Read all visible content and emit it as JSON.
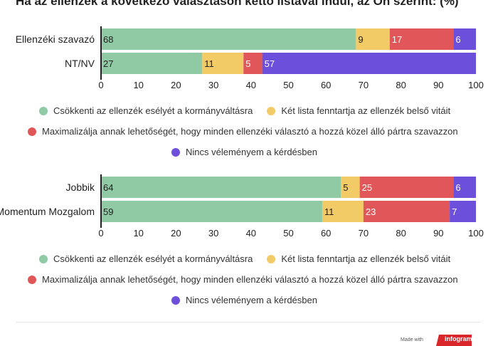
{
  "title": "Ha az ellenzék a következő választáson kettő listával indul, az Ön szerint: (%)",
  "legend": [
    {
      "label": "Csökkenti az ellenzék esélyét a kormányváltásra",
      "color": "#8fcaa4"
    },
    {
      "label": "Két lista fenntartja az ellenzék belső vitáit",
      "color": "#f2cb67"
    },
    {
      "label": "Maximalizálja annak lehetőségét, hogy minden ellenzéki választó a hozzá közel álló pártra szavazzon",
      "color": "#e15759"
    },
    {
      "label": "Nincs véleményem a kérdésben",
      "color": "#6c4fdb"
    }
  ],
  "chart_data": [
    {
      "type": "bar",
      "stacked": true,
      "orientation": "horizontal",
      "categories": [
        "Ellenzéki szavazó",
        "NT/NV"
      ],
      "series": [
        {
          "name": "Csökkenti az ellenzék esélyét a kormányváltásra",
          "values": [
            68,
            27
          ],
          "color": "#8fcaa4"
        },
        {
          "name": "Két lista fenntartja az ellenzék belső vitáit",
          "values": [
            9,
            11
          ],
          "color": "#f2cb67"
        },
        {
          "name": "Maximalizálja annak lehetőségét, hogy minden ellenzéki választó a hozzá közel álló pártra szavazzon",
          "values": [
            17,
            5
          ],
          "color": "#e15759"
        },
        {
          "name": "Nincs véleményem a kérdésben",
          "values": [
            6,
            57
          ],
          "color": "#6c4fdb"
        }
      ],
      "xlim": [
        0,
        100
      ],
      "ticks": [
        0,
        10,
        20,
        30,
        40,
        50,
        60,
        70,
        80,
        90,
        100
      ],
      "legend": "bottom"
    },
    {
      "type": "bar",
      "stacked": true,
      "orientation": "horizontal",
      "categories": [
        "Jobbik",
        "Momentum Mozgalom"
      ],
      "series": [
        {
          "name": "Csökkenti az ellenzék esélyét a kormányváltásra",
          "values": [
            64,
            59
          ],
          "color": "#8fcaa4"
        },
        {
          "name": "Két lista fenntartja az ellenzék belső vitáit",
          "values": [
            5,
            11
          ],
          "color": "#f2cb67"
        },
        {
          "name": "Maximalizálja annak lehetőségét, hogy minden ellenzéki választó a hozzá közel álló pártra szavazzon",
          "values": [
            25,
            23
          ],
          "color": "#e15759"
        },
        {
          "name": "Nincs véleményem a kérdésben",
          "values": [
            6,
            7
          ],
          "color": "#6c4fdb"
        }
      ],
      "xlim": [
        0,
        100
      ],
      "ticks": [
        0,
        10,
        20,
        30,
        40,
        50,
        60,
        70,
        80,
        90,
        100
      ],
      "legend": "bottom"
    }
  ],
  "footer": {
    "made_with": "Made with",
    "brand": "infogram"
  }
}
